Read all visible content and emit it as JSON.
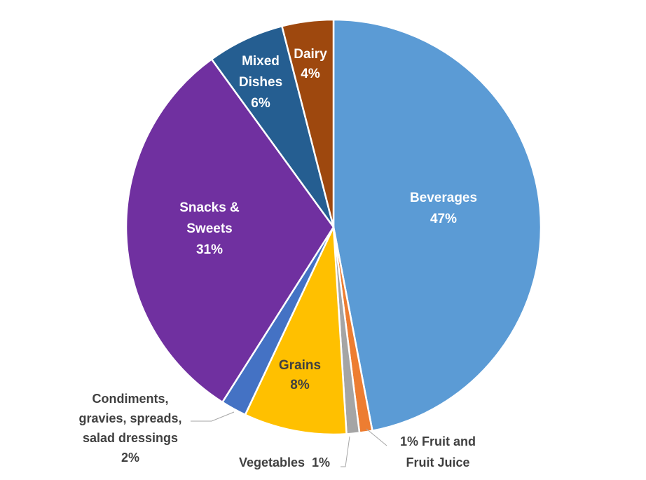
{
  "chart_data": {
    "type": "pie",
    "title": "",
    "slices": [
      {
        "name": "Beverages",
        "value": 47,
        "label": [
          "Beverages",
          "47%"
        ],
        "color": "#5B9BD5"
      },
      {
        "name": "Fruit and Fruit Juice",
        "value": 1,
        "label": [
          "1% Fruit and",
          "Fruit Juice"
        ],
        "color": "#ED7D31"
      },
      {
        "name": "Vegetables",
        "value": 1,
        "label": [
          "Vegetables  1%"
        ],
        "color": "#A5A5A5"
      },
      {
        "name": "Grains",
        "value": 8,
        "label": [
          "Grains",
          "8%"
        ],
        "color": "#FFC000"
      },
      {
        "name": "Condiments, gravies, spreads, salad dressings",
        "value": 2,
        "label": [
          "Condiments,",
          "gravies, spreads,",
          "salad dressings",
          "2%"
        ],
        "color": "#4472C4"
      },
      {
        "name": "Snacks & Sweets",
        "value": 31,
        "label": [
          "Snacks &",
          "Sweets",
          "31%"
        ],
        "color": "#7030A0"
      },
      {
        "name": "Mixed Dishes",
        "value": 6,
        "label": [
          "Mixed",
          "Dishes",
          "6%"
        ],
        "color": "#255E91"
      },
      {
        "name": "Dairy",
        "value": 4,
        "label": [
          "Dairy",
          "4%"
        ],
        "color": "#9E480E"
      }
    ],
    "start_angle_deg": 0,
    "direction": "clockwise",
    "legend": "none",
    "label_style": "data labels with leader lines for small slices"
  }
}
